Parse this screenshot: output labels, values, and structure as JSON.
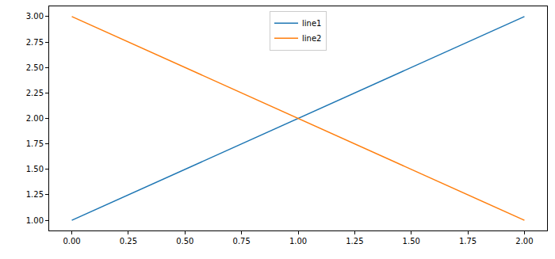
{
  "chart_data": {
    "type": "line",
    "x": [
      0,
      1,
      2
    ],
    "series": [
      {
        "name": "line1",
        "color": "#1f77b4",
        "values": [
          1,
          2,
          3
        ]
      },
      {
        "name": "line2",
        "color": "#ff7f0e",
        "values": [
          3,
          2,
          1
        ]
      }
    ],
    "xlim": [
      -0.1,
      2.1
    ],
    "xticks": [
      {
        "value": 0,
        "label": "0.00"
      },
      {
        "value": 0.25,
        "label": "0.25"
      },
      {
        "value": 0.5,
        "label": "0.50"
      },
      {
        "value": 0.75,
        "label": "0.75"
      },
      {
        "value": 1,
        "label": "1.00"
      },
      {
        "value": 1.25,
        "label": "1.25"
      },
      {
        "value": 1.5,
        "label": "1.50"
      },
      {
        "value": 1.75,
        "label": "1.75"
      },
      {
        "value": 2,
        "label": "2.00"
      }
    ],
    "ylim": [
      0.9,
      3.1
    ],
    "yticks": [
      {
        "value": 1,
        "label": "1.00"
      },
      {
        "value": 1.25,
        "label": "1.25"
      },
      {
        "value": 1.5,
        "label": "1.50"
      },
      {
        "value": 1.75,
        "label": "1.75"
      },
      {
        "value": 2,
        "label": "2.00"
      },
      {
        "value": 2.25,
        "label": "2.25"
      },
      {
        "value": 2.5,
        "label": "2.50"
      },
      {
        "value": 2.75,
        "label": "2.75"
      },
      {
        "value": 3,
        "label": "3.00"
      }
    ],
    "grid": false,
    "legend": "upper center"
  }
}
